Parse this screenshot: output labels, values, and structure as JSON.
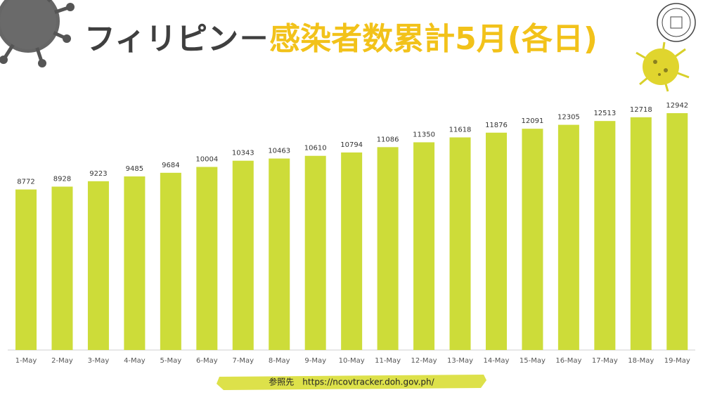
{
  "chart_data": {
    "type": "bar",
    "title_parts": [
      "フィリピン－",
      "感染者数累計5月(各日)"
    ],
    "categories": [
      "1-May",
      "2-May",
      "3-May",
      "4-May",
      "5-May",
      "6-May",
      "7-May",
      "8-May",
      "9-May",
      "10-May",
      "11-May",
      "12-May",
      "13-May",
      "14-May",
      "15-May",
      "16-May",
      "17-May",
      "18-May",
      "19-May"
    ],
    "values": [
      8772,
      8928,
      9223,
      9485,
      9684,
      10004,
      10343,
      10463,
      10610,
      10794,
      11086,
      11350,
      11618,
      11876,
      12091,
      12305,
      12513,
      12718,
      12942
    ],
    "color": "#cddc39",
    "source": "参照先　https://ncovtracker.doh.gov.ph/"
  }
}
